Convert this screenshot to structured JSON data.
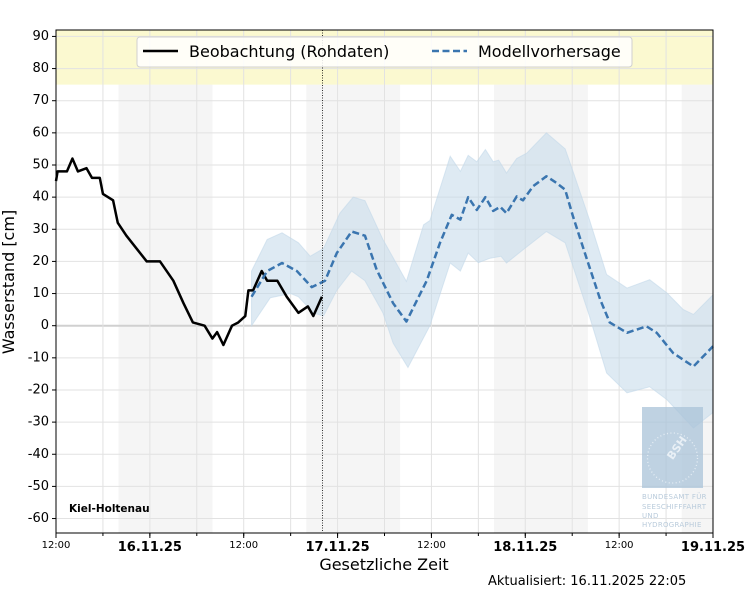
{
  "chart_data": {
    "type": "line",
    "xlabel": "Gesetzliche Zeit",
    "ylabel": "Wasserstand [cm]",
    "xlim": [
      "2025-11-15T12:00",
      "2025-11-19T00:00"
    ],
    "ylim": [
      -64.5,
      92
    ],
    "grid": true,
    "legend_placement": "top-center",
    "y_ticks": [
      "-60",
      "-50",
      "-40",
      "-30",
      "-20",
      "-10",
      "0",
      "10",
      "20",
      "30",
      "40",
      "50",
      "60",
      "70",
      "80",
      "90"
    ],
    "x_ticks": [
      {
        "t": "2025-11-15T12:00",
        "label": "12:00",
        "kind": "time"
      },
      {
        "t": "2025-11-16T00:00",
        "label": "16.11.25",
        "kind": "date"
      },
      {
        "t": "2025-11-16T12:00",
        "label": "12:00",
        "kind": "time"
      },
      {
        "t": "2025-11-17T00:00",
        "label": "17.11.25",
        "kind": "date"
      },
      {
        "t": "2025-11-17T12:00",
        "label": "12:00",
        "kind": "time"
      },
      {
        "t": "2025-11-18T00:00",
        "label": "18.11.25",
        "kind": "date"
      },
      {
        "t": "2025-11-18T12:00",
        "label": "12:00",
        "kind": "time"
      },
      {
        "t": "2025-11-19T00:00",
        "label": "19.11.25",
        "kind": "date"
      }
    ],
    "warning_band": {
      "from": 75,
      "color": "#fbf9d0"
    },
    "night_shading": [
      [
        "2025-11-15T20:00",
        "2025-11-16T08:00"
      ],
      [
        "2025-11-16T20:00",
        "2025-11-17T08:00"
      ],
      [
        "2025-11-17T20:00",
        "2025-11-18T08:00"
      ],
      [
        "2025-11-18T20:00",
        "2025-11-19T00:00"
      ]
    ],
    "now_marker": "2025-11-16T22:05",
    "series": [
      {
        "name": "Beobachtung (Rohdaten)",
        "color": "#000000",
        "style": "solid",
        "points": [
          [
            "2025-11-15T12:00",
            45
          ],
          [
            "2025-11-15T12:12",
            48
          ],
          [
            "2025-11-15T13:24",
            48
          ],
          [
            "2025-11-15T14:06",
            52
          ],
          [
            "2025-11-15T14:48",
            48
          ],
          [
            "2025-11-15T15:54",
            49
          ],
          [
            "2025-11-15T16:36",
            46
          ],
          [
            "2025-11-15T17:36",
            46
          ],
          [
            "2025-11-15T18:00",
            41
          ],
          [
            "2025-11-15T19:18",
            39
          ],
          [
            "2025-11-15T19:54",
            32
          ],
          [
            "2025-11-15T21:00",
            28
          ],
          [
            "2025-11-15T22:18",
            24
          ],
          [
            "2025-11-15T23:36",
            20
          ],
          [
            "2025-11-16T01:18",
            20
          ],
          [
            "2025-11-16T03:00",
            14
          ],
          [
            "2025-11-16T04:18",
            7
          ],
          [
            "2025-11-16T05:30",
            1
          ],
          [
            "2025-11-16T07:00",
            0
          ],
          [
            "2025-11-16T08:00",
            -4
          ],
          [
            "2025-11-16T08:36",
            -2
          ],
          [
            "2025-11-16T09:24",
            -6
          ],
          [
            "2025-11-16T10:30",
            0
          ],
          [
            "2025-11-16T11:18",
            1
          ],
          [
            "2025-11-16T12:12",
            3
          ],
          [
            "2025-11-16T12:36",
            11
          ],
          [
            "2025-11-16T13:12",
            11
          ],
          [
            "2025-11-16T14:18",
            17
          ],
          [
            "2025-11-16T15:00",
            14
          ],
          [
            "2025-11-16T16:18",
            14
          ],
          [
            "2025-11-16T17:30",
            9
          ],
          [
            "2025-11-16T19:00",
            4
          ],
          [
            "2025-11-16T20:12",
            6
          ],
          [
            "2025-11-16T20:54",
            3
          ],
          [
            "2025-11-16T22:00",
            9
          ]
        ]
      },
      {
        "name": "Modellvorhersage",
        "color": "#3a75af",
        "style": "dashed",
        "points": [
          [
            "2025-11-16T13:00",
            9
          ],
          [
            "2025-11-16T15:00",
            17
          ],
          [
            "2025-11-16T16:54",
            19.5
          ],
          [
            "2025-11-16T18:48",
            17
          ],
          [
            "2025-11-16T20:42",
            12
          ],
          [
            "2025-11-16T22:24",
            14
          ],
          [
            "2025-11-16T23:54",
            22.6
          ],
          [
            "2025-11-17T01:48",
            29.3
          ],
          [
            "2025-11-17T03:30",
            28
          ],
          [
            "2025-11-17T05:00",
            17.4
          ],
          [
            "2025-11-17T07:06",
            7
          ],
          [
            "2025-11-17T08:48",
            1.3
          ],
          [
            "2025-11-17T11:24",
            14
          ],
          [
            "2025-11-17T13:06",
            25.8
          ],
          [
            "2025-11-17T14:36",
            34.5
          ],
          [
            "2025-11-17T15:42",
            33
          ],
          [
            "2025-11-17T16:42",
            40
          ],
          [
            "2025-11-17T17:48",
            36
          ],
          [
            "2025-11-17T18:54",
            40
          ],
          [
            "2025-11-17T19:54",
            35.7
          ],
          [
            "2025-11-17T20:48",
            37
          ],
          [
            "2025-11-17T21:36",
            35
          ],
          [
            "2025-11-17T22:54",
            40.2
          ],
          [
            "2025-11-17T23:42",
            39
          ],
          [
            "2025-11-18T01:00",
            43.4
          ],
          [
            "2025-11-18T02:42",
            46.5
          ],
          [
            "2025-11-18T04:00",
            44.4
          ],
          [
            "2025-11-18T05:06",
            42.3
          ],
          [
            "2025-11-18T06:06",
            34
          ],
          [
            "2025-11-18T07:54",
            20.5
          ],
          [
            "2025-11-18T09:36",
            8
          ],
          [
            "2025-11-18T10:48",
            1
          ],
          [
            "2025-11-18T13:00",
            -2.2
          ],
          [
            "2025-11-18T15:30",
            -0.2
          ],
          [
            "2025-11-18T16:48",
            -2.2
          ],
          [
            "2025-11-18T18:54",
            -8.5
          ],
          [
            "2025-11-18T21:30",
            -12.7
          ],
          [
            "2025-11-19T00:00",
            -6.4
          ]
        ]
      }
    ],
    "uncertainty_band": {
      "color": "#c3d8ea",
      "upper": [
        [
          "2025-11-16T13:00",
          17
        ],
        [
          "2025-11-16T15:00",
          26.8
        ],
        [
          "2025-11-16T16:54",
          28.9
        ],
        [
          "2025-11-16T19:00",
          25.8
        ],
        [
          "2025-11-16T20:30",
          21.6
        ],
        [
          "2025-11-16T22:12",
          24
        ],
        [
          "2025-11-17T00:18",
          35
        ],
        [
          "2025-11-17T02:00",
          40
        ],
        [
          "2025-11-17T03:30",
          38.9
        ],
        [
          "2025-11-17T05:48",
          26.8
        ],
        [
          "2025-11-17T08:48",
          13.8
        ],
        [
          "2025-11-17T11:00",
          31.4
        ],
        [
          "2025-11-17T11:48",
          32.7
        ],
        [
          "2025-11-17T14:24",
          52.7
        ],
        [
          "2025-11-17T15:42",
          48
        ],
        [
          "2025-11-17T16:42",
          53
        ],
        [
          "2025-11-17T17:48",
          51
        ],
        [
          "2025-11-17T18:54",
          54.8
        ],
        [
          "2025-11-17T19:54",
          51
        ],
        [
          "2025-11-17T20:36",
          51.5
        ],
        [
          "2025-11-17T21:36",
          47.5
        ],
        [
          "2025-11-17T22:54",
          52
        ],
        [
          "2025-11-18T00:12",
          53.7
        ],
        [
          "2025-11-18T02:42",
          60
        ],
        [
          "2025-11-18T05:06",
          55
        ],
        [
          "2025-11-18T06:06",
          48
        ],
        [
          "2025-11-18T08:12",
          33
        ],
        [
          "2025-11-18T10:24",
          15.9
        ],
        [
          "2025-11-18T13:00",
          11.7
        ],
        [
          "2025-11-18T15:54",
          14.3
        ],
        [
          "2025-11-18T18:06",
          10.2
        ],
        [
          "2025-11-18T20:12",
          5
        ],
        [
          "2025-11-18T21:30",
          3.5
        ],
        [
          "2025-11-19T00:00",
          9.6
        ]
      ],
      "lower": [
        [
          "2025-11-16T13:00",
          0
        ],
        [
          "2025-11-16T15:24",
          8.7
        ],
        [
          "2025-11-16T18:00",
          10
        ],
        [
          "2025-11-16T19:00",
          9
        ],
        [
          "2025-11-16T20:54",
          4
        ],
        [
          "2025-11-16T22:12",
          3
        ],
        [
          "2025-11-16T23:54",
          11
        ],
        [
          "2025-11-17T01:48",
          17
        ],
        [
          "2025-11-17T03:30",
          14
        ],
        [
          "2025-11-17T05:48",
          4
        ],
        [
          "2025-11-17T07:06",
          -5.4
        ],
        [
          "2025-11-17T09:00",
          -13
        ],
        [
          "2025-11-17T11:48",
          0
        ],
        [
          "2025-11-17T14:24",
          19.5
        ],
        [
          "2025-11-17T15:42",
          17
        ],
        [
          "2025-11-17T16:42",
          22.6
        ],
        [
          "2025-11-17T18:00",
          19.6
        ],
        [
          "2025-11-17T19:30",
          21
        ],
        [
          "2025-11-17T20:54",
          21.6
        ],
        [
          "2025-11-17T21:36",
          19.5
        ],
        [
          "2025-11-17T23:42",
          23.6
        ],
        [
          "2025-11-18T02:42",
          29.3
        ],
        [
          "2025-11-18T05:06",
          25.8
        ],
        [
          "2025-11-18T08:12",
          3
        ],
        [
          "2025-11-18T10:24",
          -14.7
        ],
        [
          "2025-11-18T13:00",
          -20.9
        ],
        [
          "2025-11-18T15:54",
          -19
        ],
        [
          "2025-11-18T18:06",
          -23
        ],
        [
          "2025-11-18T21:30",
          -31.8
        ],
        [
          "2025-11-19T00:00",
          -27
        ]
      ]
    },
    "annotations": {
      "station": "Kiel-Holtenau",
      "updated": "Aktualisiert: 16.11.2025 22:05"
    }
  },
  "logo": {
    "mark": "BSH",
    "lines": [
      "BUNDESAMT FÜR",
      "SEESCHIFFFAHRT",
      "UND",
      "HYDROGRAPHIE"
    ]
  }
}
